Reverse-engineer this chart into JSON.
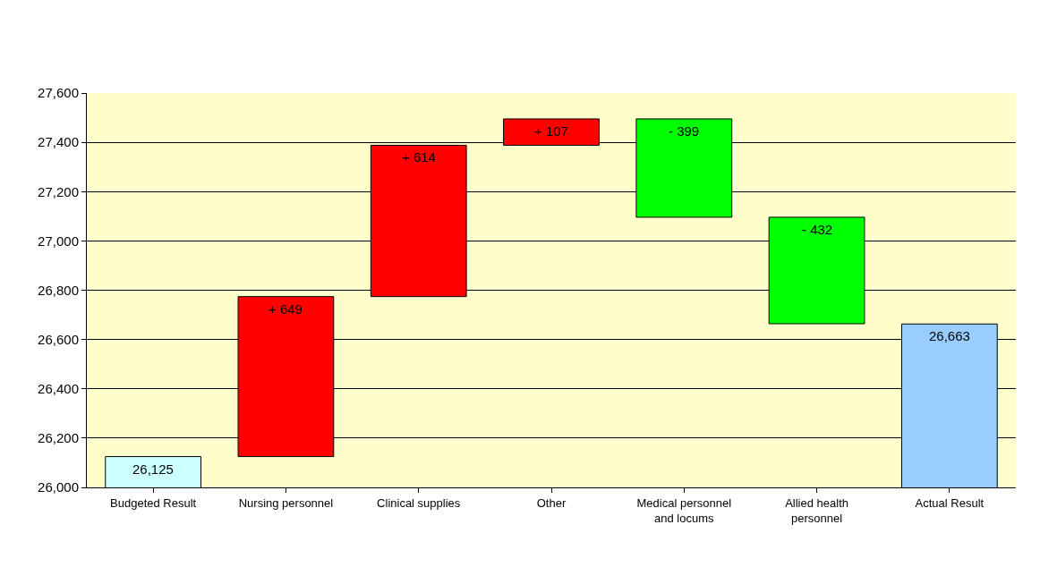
{
  "chart_data": {
    "type": "bar",
    "categories": [
      "Budgeted Result",
      "Nursing personnel",
      "Clinical supplies",
      "Other",
      "Medical personnel and locums",
      "Allied health personnel",
      "Actual Result"
    ],
    "values": [
      26125,
      649,
      614,
      107,
      -399,
      -432,
      26663
    ],
    "base": [
      null,
      26125,
      26774,
      27388,
      27495,
      27096,
      null
    ],
    "colors": [
      "#ccffff",
      "#ff0000",
      "#ff0000",
      "#ff0000",
      "#00ff00",
      "#00ff00",
      "#99ccff"
    ],
    "value_labels": [
      "26,125",
      "+ 649",
      "+ 614",
      "+ 107",
      "- 399",
      "- 432",
      "26,663"
    ],
    "ylim": [
      26000,
      27600
    ],
    "yticks": [
      {
        "value": 26000,
        "label": "26,000"
      },
      {
        "value": 26200,
        "label": "26,200"
      },
      {
        "value": 26400,
        "label": "26,400"
      },
      {
        "value": 26600,
        "label": "26,600"
      },
      {
        "value": 26800,
        "label": "26,800"
      },
      {
        "value": 27000,
        "label": "27,000"
      },
      {
        "value": 27200,
        "label": "27,200"
      },
      {
        "value": 27400,
        "label": "27,400"
      },
      {
        "value": 27600,
        "label": "27,600"
      }
    ],
    "grid": "y",
    "legend": false
  }
}
